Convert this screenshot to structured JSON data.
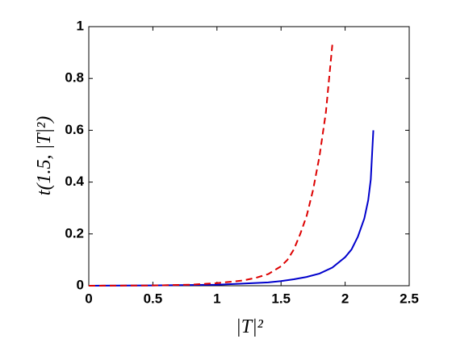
{
  "chart_data": {
    "type": "line",
    "xlabel": "|T|²",
    "ylabel": "t(1.5, |T|²)",
    "xlim": [
      0,
      2.5
    ],
    "ylim": [
      0,
      1
    ],
    "xticks": [
      0,
      0.5,
      1,
      1.5,
      2,
      2.5
    ],
    "yticks": [
      0,
      0.2,
      0.4,
      0.6,
      0.8,
      1
    ],
    "grid": false,
    "series": [
      {
        "color": "#0000cc",
        "dash": false,
        "x": [
          0,
          0.5,
          1,
          1.2,
          1.4,
          1.5,
          1.6,
          1.7,
          1.8,
          1.9,
          2.0,
          2.05,
          2.1,
          2.15,
          2.18,
          2.2,
          2.22
        ],
        "values": [
          0,
          0.001,
          0.004,
          0.008,
          0.013,
          0.018,
          0.025,
          0.034,
          0.047,
          0.07,
          0.11,
          0.14,
          0.19,
          0.26,
          0.33,
          0.41,
          0.6
        ]
      },
      {
        "color": "#dd0000",
        "dash": true,
        "x": [
          0,
          0.5,
          0.8,
          1,
          1.2,
          1.3,
          1.4,
          1.5,
          1.55,
          1.6,
          1.65,
          1.7,
          1.75,
          1.8,
          1.85,
          1.9
        ],
        "values": [
          0,
          0.001,
          0.004,
          0.01,
          0.02,
          0.03,
          0.045,
          0.075,
          0.1,
          0.14,
          0.2,
          0.27,
          0.37,
          0.5,
          0.67,
          0.93
        ]
      }
    ]
  }
}
